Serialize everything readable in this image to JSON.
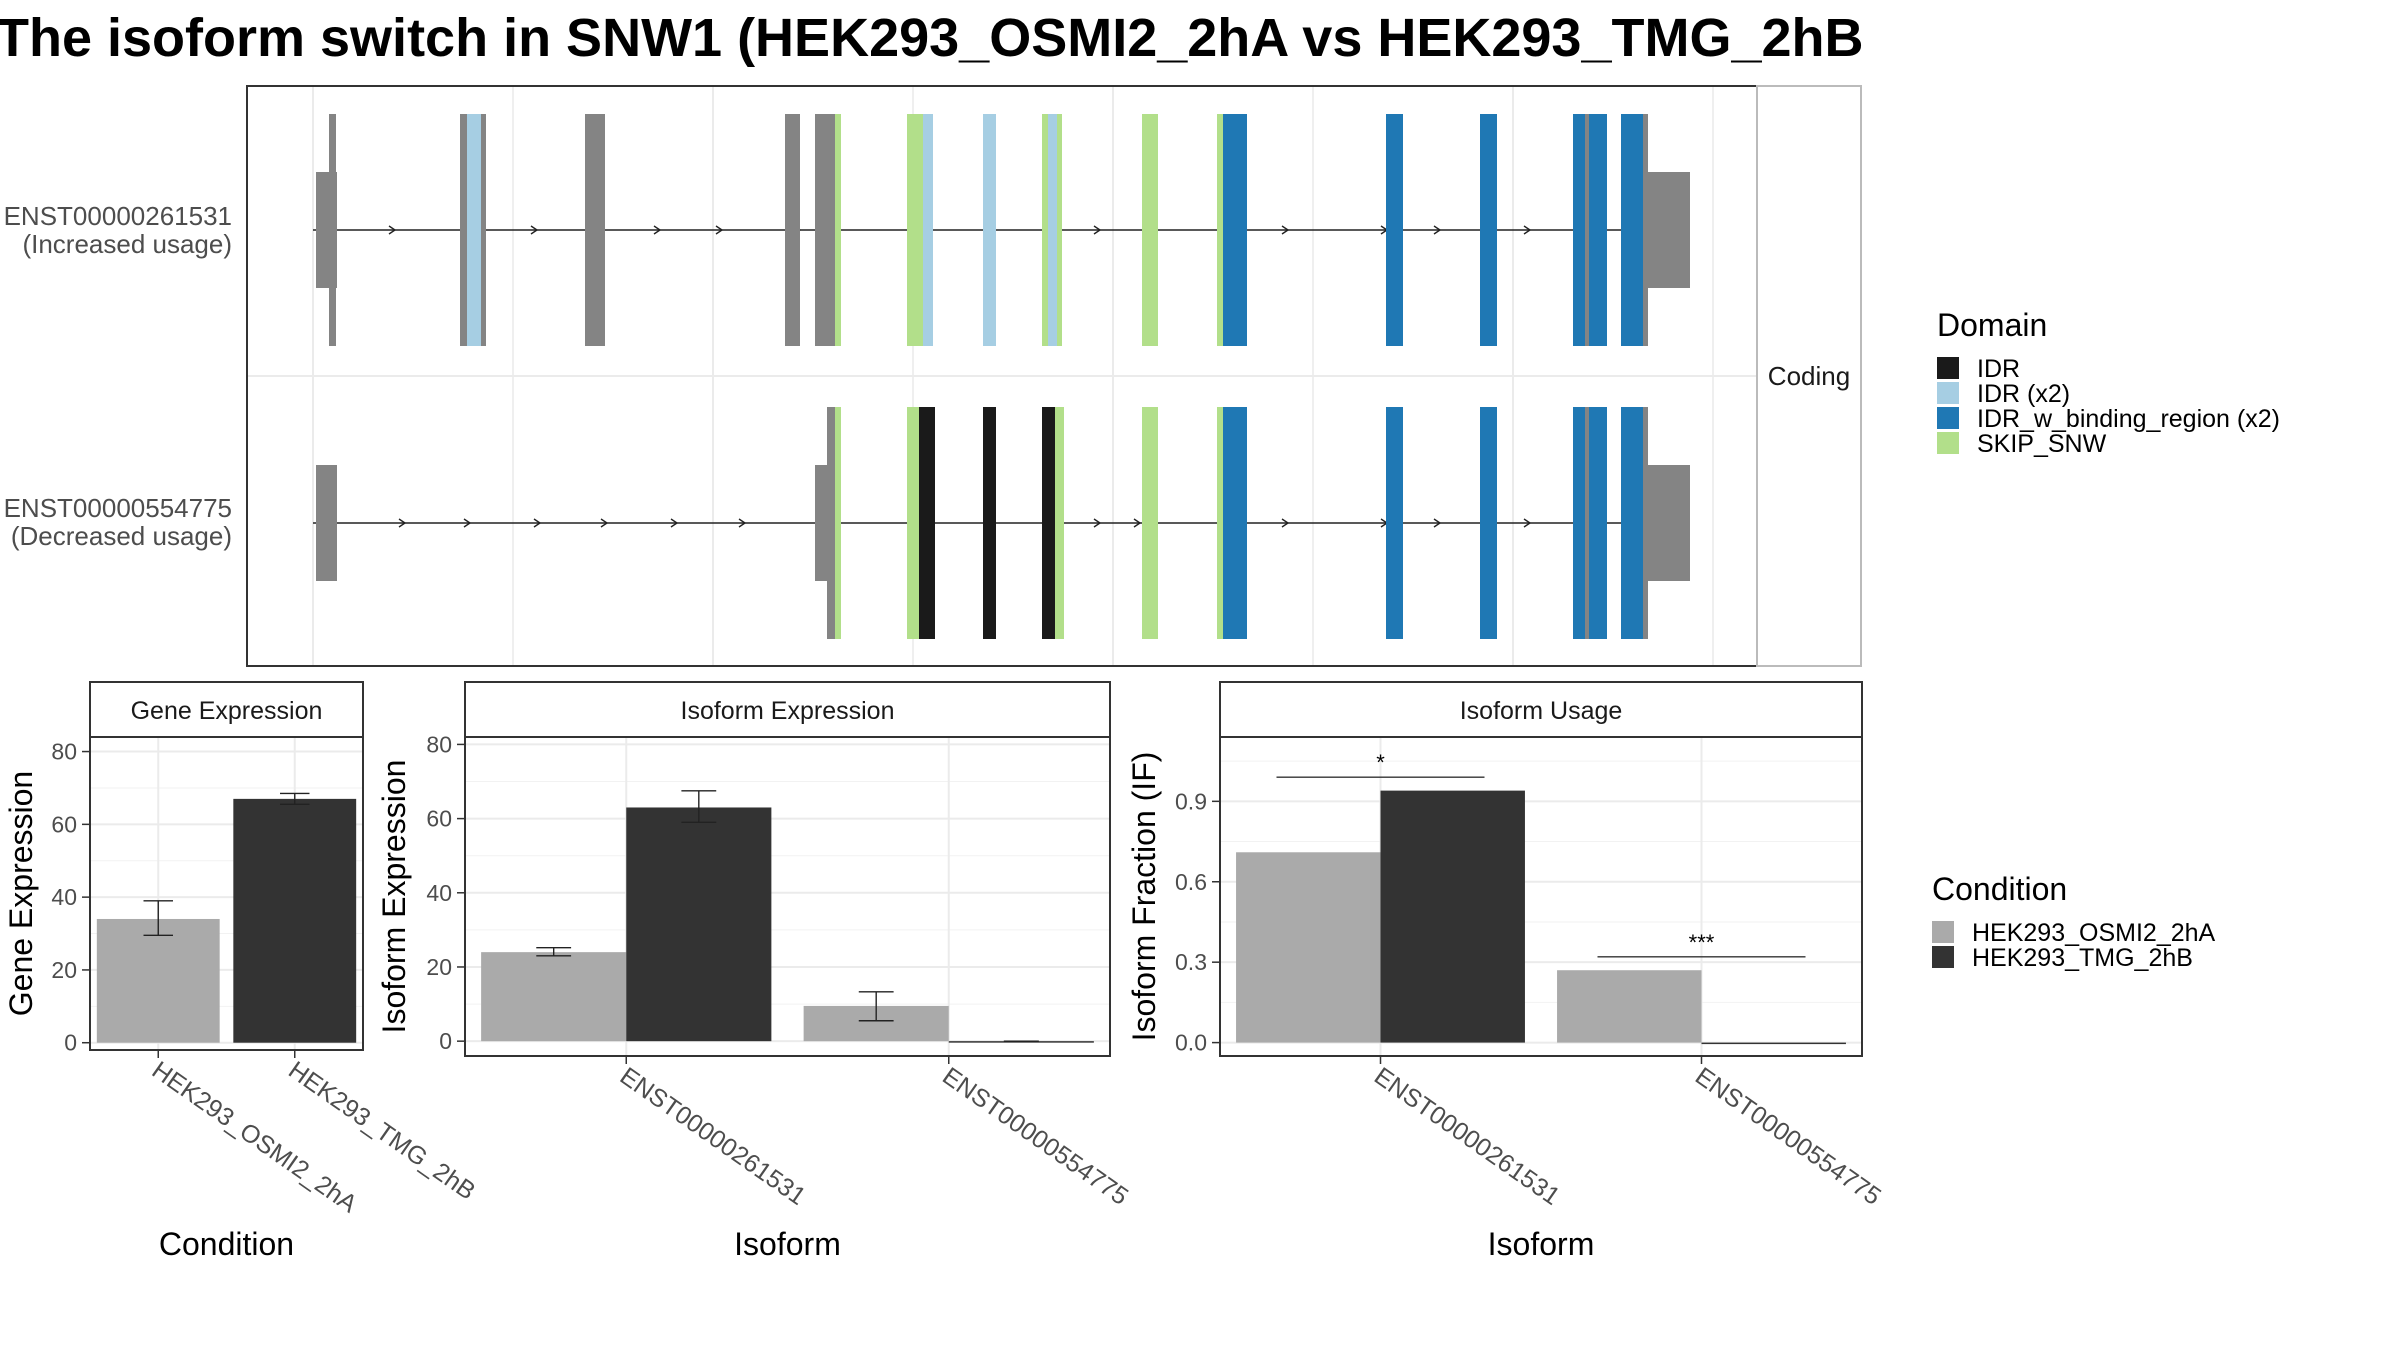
{
  "title": "The isoform switch in SNW1 (HEK293_OSMI2_2hA vs HEK293_TMG_2hB",
  "structure": {
    "strip_label": "Coding",
    "transcripts": [
      {
        "id": "ENST00000261531",
        "usage": "(Increased usage)"
      },
      {
        "id": "ENST00000554775",
        "usage": "(Decreased usage)"
      }
    ]
  },
  "domain_legend": {
    "title": "Domain",
    "items": [
      {
        "label": "IDR",
        "color": "#1a1a1a"
      },
      {
        "label": "IDR (x2)",
        "color": "#a6cee3"
      },
      {
        "label": "IDR_w_binding_region (x2)",
        "color": "#1f78b4"
      },
      {
        "label": "SKIP_SNW",
        "color": "#b2df8a"
      }
    ]
  },
  "condition_legend": {
    "title": "Condition",
    "items": [
      {
        "label": "HEK293_OSMI2_2hA",
        "color": "#aaaaaa"
      },
      {
        "label": "HEK293_TMG_2hB",
        "color": "#333333"
      }
    ]
  },
  "chart_data": [
    {
      "type": "bar",
      "panel": "Gene Expression",
      "xlabel": "Condition",
      "ylabel": "Gene Expression",
      "categories": [
        "HEK293_OSMI2_2hA",
        "HEK293_TMG_2hB"
      ],
      "values": [
        34,
        67
      ],
      "error_low": [
        29.5,
        65.5
      ],
      "error_high": [
        39,
        68.5
      ],
      "ylim": [
        -2,
        84
      ],
      "yticks": [
        0,
        20,
        40,
        60,
        80
      ],
      "colors": [
        "#aaaaaa",
        "#333333"
      ]
    },
    {
      "type": "bar",
      "panel": "Isoform Expression",
      "xlabel": "Isoform",
      "ylabel": "Isoform Expression",
      "categories": [
        "ENST00000261531",
        "ENST00000554775"
      ],
      "series": [
        {
          "name": "HEK293_OSMI2_2hA",
          "values": [
            24,
            9.5
          ],
          "error_low": [
            23,
            5.5
          ],
          "error_high": [
            25.2,
            13.3
          ]
        },
        {
          "name": "HEK293_TMG_2hB",
          "values": [
            63,
            0
          ],
          "error_low": [
            59,
            0
          ],
          "error_high": [
            67.5,
            0
          ]
        }
      ],
      "ylim": [
        -4,
        82
      ],
      "yticks": [
        0,
        20,
        40,
        60,
        80
      ],
      "colors": [
        "#aaaaaa",
        "#333333"
      ]
    },
    {
      "type": "bar",
      "panel": "Isoform Usage",
      "xlabel": "Isoform",
      "ylabel": "Isoform Fraction (IF)",
      "categories": [
        "ENST00000261531",
        "ENST00000554775"
      ],
      "series": [
        {
          "name": "HEK293_OSMI2_2hA",
          "values": [
            0.71,
            0.27
          ]
        },
        {
          "name": "HEK293_TMG_2hB",
          "values": [
            0.94,
            0.0
          ]
        }
      ],
      "significance": [
        {
          "category": "ENST00000261531",
          "label": "*",
          "y": 0.99
        },
        {
          "category": "ENST00000554775",
          "label": "***",
          "y": 0.32
        }
      ],
      "ylim": [
        -0.05,
        1.14
      ],
      "yticks": [
        "0.0",
        "0.3",
        "0.6",
        "0.9"
      ],
      "colors": [
        "#aaaaaa",
        "#333333"
      ]
    }
  ]
}
